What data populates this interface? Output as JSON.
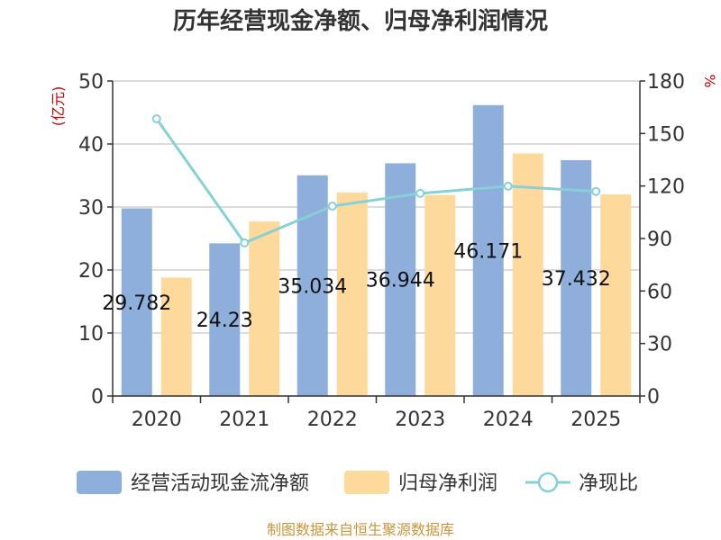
{
  "chart_data": {
    "type": "bar",
    "title": "历年经营现金净额、归母净利润情况",
    "ylabel_left": "(亿元)",
    "ylabel_right": "%",
    "categories": [
      "2020",
      "2021",
      "2022",
      "2023",
      "2024",
      "2025"
    ],
    "ylim_left": [
      0,
      50
    ],
    "yticks_left": [
      "0",
      "10",
      "20",
      "30",
      "40",
      "50"
    ],
    "ylim_right": [
      0,
      180
    ],
    "yticks_right": [
      "0",
      "30",
      "60",
      "90",
      "120",
      "150",
      "180"
    ],
    "series": [
      {
        "name": "经营活动现金流净额",
        "kind": "bar",
        "axis": "left",
        "color": "#8eaedc",
        "values": [
          29.78,
          24.23,
          35.03,
          36.94,
          46.17,
          37.43
        ],
        "labels": [
          "29.782",
          "24.23",
          "35.034",
          "36.944",
          "46.171",
          "37.432"
        ]
      },
      {
        "name": "归母净利润",
        "kind": "bar",
        "axis": "left",
        "color": "#fdd99b",
        "values": [
          18.8,
          27.7,
          32.3,
          31.9,
          38.5,
          32.0
        ]
      },
      {
        "name": "净现比",
        "kind": "line",
        "axis": "right",
        "color": "#88d0d8",
        "values": [
          158.4,
          87.5,
          108.5,
          115.8,
          119.9,
          116.9
        ]
      }
    ],
    "grid": true,
    "legend_position": "bottom"
  },
  "source": "制图数据来自恒生聚源数据库",
  "colors": {
    "axis_unit": "#cc0000",
    "source": "#c8963c"
  }
}
